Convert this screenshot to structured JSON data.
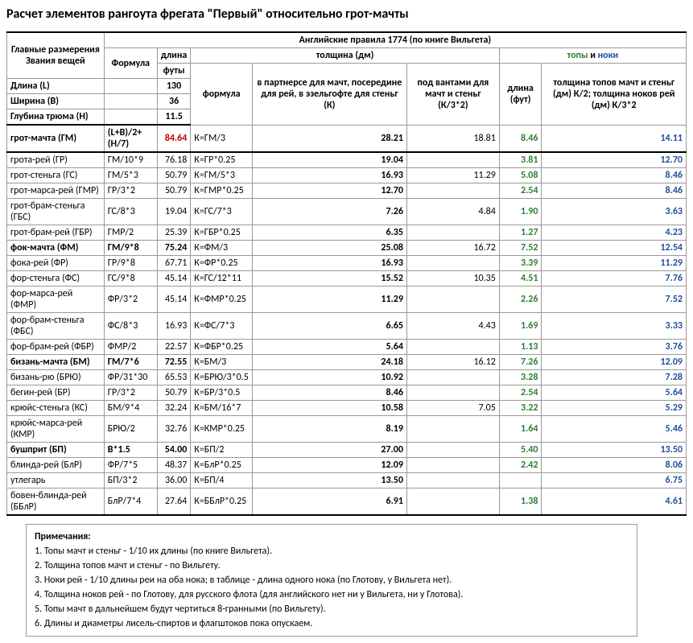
{
  "title": "Расчет элементов рангоута фрегата \"Первый\" относительно грот-мачты",
  "header": {
    "rules": "Английские правила 1774 (по книге Вильгета)",
    "main_dim": "Главные размерения Звания вещей",
    "formula": "Формула",
    "length": "длина",
    "feet": "футы",
    "thickness": "толщина (дм)",
    "formula2": "формула",
    "partner": "в партнерсе для мачт, посередине для рей, в эзельгофте для стеньг (К)",
    "shrouds": "под вантами для мачт и стеньг (К/3*2)",
    "tops_nocks_pre": "топы",
    "tops_nocks_mid": " и ",
    "tops_nocks_post": "ноки",
    "len_ft": "длина (фут)",
    "thick_tops": "толщина топов мачт и стеньг (дм) К/2; толщина ноков рей (дм) К/3*2"
  },
  "dims": [
    {
      "name": "Длина (L)",
      "val": "130"
    },
    {
      "name": "Ширина (B)",
      "val": "36"
    },
    {
      "name": "Глубина трюма (H)",
      "val": "11.5"
    }
  ],
  "rows": [
    {
      "bold": true,
      "name": "грот-мачта (ГМ)",
      "f1": "(L+B)/2+(H/7)",
      "len": "84.64",
      "lenred": true,
      "f2": "К=ГМ/3",
      "k": "28.21",
      "k2": "18.81",
      "top": "8.46",
      "nock": "14.11"
    },
    {
      "bold": false,
      "name": "грота-рей (ГР)",
      "f1": "ГМ/10*9",
      "len": "76.18",
      "f2": "К=ГР*0.25",
      "k": "19.04",
      "k2": "",
      "top": "3.81",
      "nock": "12.70"
    },
    {
      "bold": false,
      "name": "грот-стеньга (ГС)",
      "f1": "ГМ/5*3",
      "len": "50.79",
      "f2": "К=ГМ/5*3",
      "k": "16.93",
      "k2": "11.29",
      "top": "5.08",
      "nock": "8.46"
    },
    {
      "bold": false,
      "name": "грот-марса-рей (ГМР)",
      "f1": "ГР/3*2",
      "len": "50.79",
      "f2": "К=ГМР*0.25",
      "k": "12.70",
      "k2": "",
      "top": "2.54",
      "nock": "8.46"
    },
    {
      "bold": false,
      "name": "грот-брам-стеньга (ГБС)",
      "f1": "ГС/8*3",
      "len": "19.04",
      "f2": "К=ГС/7*3",
      "k": "7.26",
      "k2": "4.84",
      "top": "1.90",
      "nock": "3.63"
    },
    {
      "bold": false,
      "name": "грот-брам-рей (ГБР)",
      "f1": "ГМР/2",
      "len": "25.39",
      "f2": "К=ГБР*0.25",
      "k": "6.35",
      "k2": "",
      "top": "1.27",
      "nock": "4.23"
    },
    {
      "bold": true,
      "name": "фок-мачта (ФМ)",
      "f1": "ГМ/9*8",
      "len": "75.24",
      "f2": "К=ФМ/3",
      "k": "25.08",
      "k2": "16.72",
      "top": "7.52",
      "nock": "12.54"
    },
    {
      "bold": false,
      "name": "фока-рей (ФР)",
      "f1": "ГР/9*8",
      "len": "67.71",
      "f2": "К=ФР*0.25",
      "k": "16.93",
      "k2": "",
      "top": "3.39",
      "nock": "11.29"
    },
    {
      "bold": false,
      "name": "фор-стеньга (ФС)",
      "f1": "ГС/9*8",
      "len": "45.14",
      "f2": "К=ГС/12*11",
      "k": "15.52",
      "k2": "10.35",
      "top": "4.51",
      "nock": "7.76"
    },
    {
      "bold": false,
      "name": "фор-марса-рей (ФМР)",
      "f1": "ФР/3*2",
      "len": "45.14",
      "f2": "К=ФМР*0.25",
      "k": "11.29",
      "k2": "",
      "top": "2.26",
      "nock": "7.52"
    },
    {
      "bold": false,
      "name": "фор-брам-стеньга (ФБС)",
      "f1": "ФС/8*3",
      "len": "16.93",
      "f2": "К=ФС/7*3",
      "k": "6.65",
      "k2": "4.43",
      "top": "1.69",
      "nock": "3.33"
    },
    {
      "bold": false,
      "name": "фор-брам-рей (ФБР)",
      "f1": "ФМР/2",
      "len": "22.57",
      "f2": "К=ФБР*0.25",
      "k": "5.64",
      "k2": "",
      "top": "1.13",
      "nock": "3.76"
    },
    {
      "bold": true,
      "name": "бизань-мачта (БМ)",
      "f1": "ГМ/7*6",
      "len": "72.55",
      "f2": "К=БМ/3",
      "k": "24.18",
      "k2": "16.12",
      "top": "7.26",
      "nock": "12.09"
    },
    {
      "bold": false,
      "name": "бизань-рю (БРЮ)",
      "f1": "ФР/31*30",
      "len": "65.53",
      "f2": "К=БРЮ/3*0.5",
      "k": "10.92",
      "k2": "",
      "top": "3.28",
      "nock": "7.28"
    },
    {
      "bold": false,
      "name": "бегин-рей (БР)",
      "f1": "ГР/3*2",
      "len": "50.79",
      "f2": "К=БР/3*0.5",
      "k": "8.46",
      "k2": "",
      "top": "2.54",
      "nock": "5.64"
    },
    {
      "bold": false,
      "name": "крюйс-стеньга (КС)",
      "f1": "БМ/9*4",
      "len": "32.24",
      "f2": "К=БМ/16*7",
      "k": "10.58",
      "k2": "7.05",
      "top": "3.22",
      "nock": "5.29"
    },
    {
      "bold": false,
      "name": "крюйс-марса-рей (КМР)",
      "f1": "БРЮ/2",
      "len": "32.76",
      "f2": "К=КМР*0.25",
      "k": "8.19",
      "k2": "",
      "top": "1.64",
      "nock": "5.46"
    },
    {
      "bold": true,
      "name": "бушприт (БП)",
      "f1": "B*1.5",
      "len": "54.00",
      "f2": "К=БП/2",
      "k": "27.00",
      "k2": "",
      "top": "5.40",
      "nock": "13.50"
    },
    {
      "bold": false,
      "name": "блинда-рей (БлР)",
      "f1": "ФР/7*5",
      "len": "48.37",
      "f2": "К=БлР*0.25",
      "k": "12.09",
      "k2": "",
      "top": "2.42",
      "nock": "8.06"
    },
    {
      "bold": false,
      "name": "утлегарь",
      "f1": "БП/3*2",
      "len": "36.00",
      "f2": "К=БП/4",
      "k": "13.50",
      "k2": "",
      "top": "",
      "nock": "6.75"
    },
    {
      "bold": false,
      "name": "бовен-блинда-рей (ББлР)",
      "f1": "БлР/7*4",
      "len": "27.64",
      "f2": "К=ББлР*0.25",
      "k": "6.91",
      "k2": "",
      "top": "1.38",
      "nock": "4.61"
    }
  ],
  "notes": {
    "title": "Примечания:",
    "items": [
      "1. Топы мачт и стеньг - 1/10 их длины (по книге Вильгета).",
      "2. Толщина топов мачт и стеньг - по Вильгету.",
      "3. Ноки рей - 1/10 длины реи на оба нока; в таблице - длина одного нока (по Глотову, у Вильгета нет).",
      "4. Толщина ноков рей - по Глотову, для русского флота (для английского нет ни у Вильгета, ни у Глотова).",
      "5. Топы мачт в дальнейшем будут чертиться 8-гранными (по Вильгету).",
      "6. Длины и диаметры лисель-спиртов и флагштоков пока опускаем."
    ]
  }
}
